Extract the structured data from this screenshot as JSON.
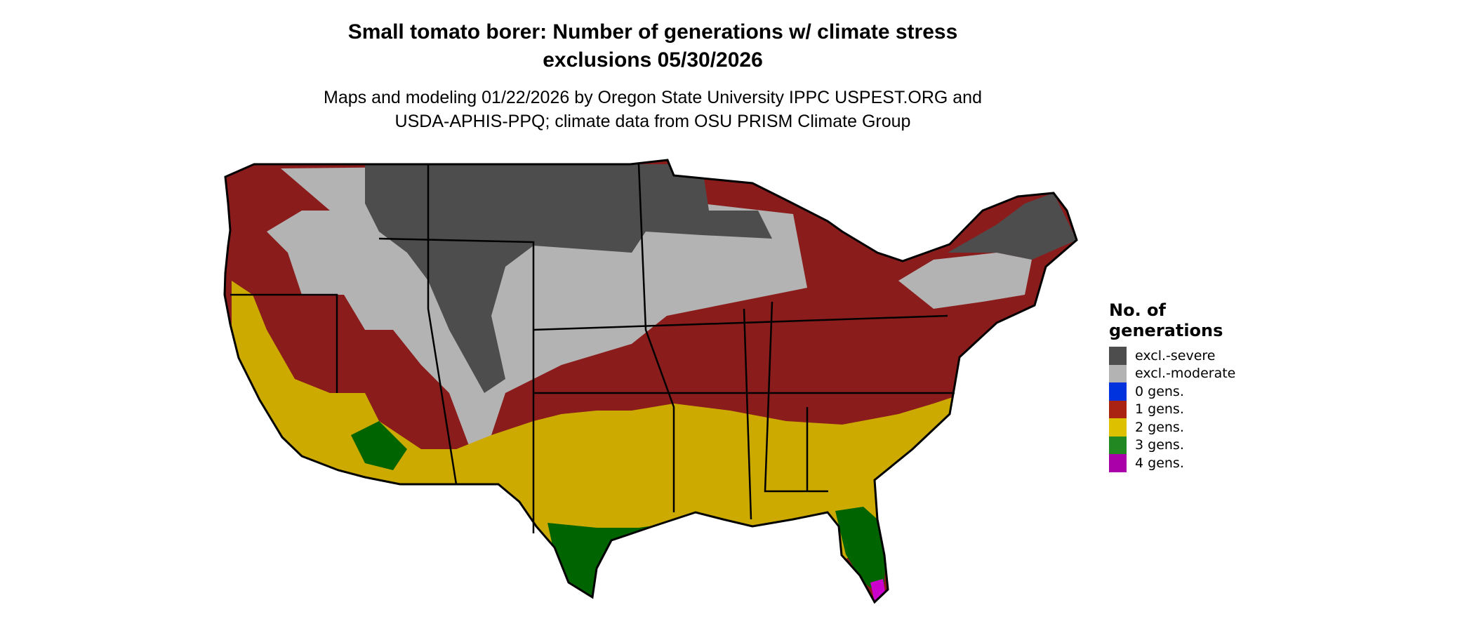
{
  "title_lines": [
    "Small tomato borer: Number of generations w/ climate stress",
    "exclusions 05/30/2026"
  ],
  "subtitle_lines": [
    "Maps and modeling 01/22/2026 by Oregon State University IPPC USPEST.ORG and",
    "USDA-APHIS-PPQ; climate data from OSU PRISM Climate Group"
  ],
  "legend": {
    "title_lines": [
      "No. of",
      "generations"
    ],
    "items": [
      {
        "label": "excl.-severe",
        "color": "#4d4d4d"
      },
      {
        "label": "excl.-moderate",
        "color": "#b3b3b3"
      },
      {
        "label": "0 gens.",
        "color": "#0033dd"
      },
      {
        "label": "1 gens.",
        "color": "#aa2211"
      },
      {
        "label": "2 gens.",
        "color": "#ddc000"
      },
      {
        "label": "3 gens.",
        "color": "#228822"
      },
      {
        "label": "4 gens.",
        "color": "#aa00aa"
      }
    ]
  },
  "map_colors": {
    "excl_severe": "#4d4d4d",
    "excl_moderate": "#b3b3b3",
    "gens_1": "#8b1c1c",
    "gens_2": "#ccaa00",
    "gens_3": "#006400",
    "gens_4": "#cc00cc",
    "border": "#000000"
  }
}
